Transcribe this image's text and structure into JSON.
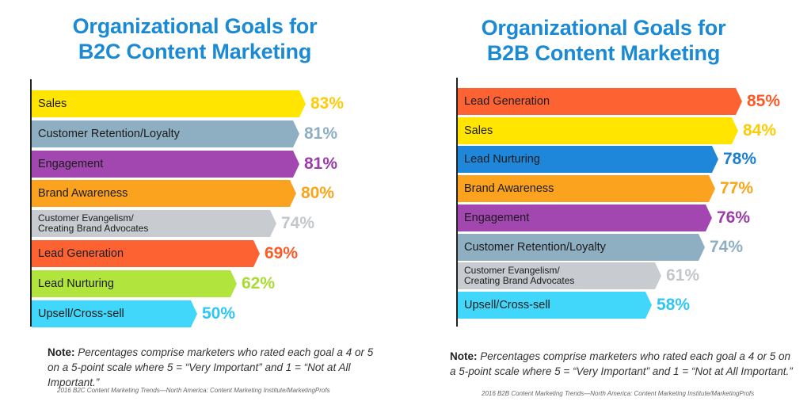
{
  "chart_data": [
    {
      "type": "bar",
      "title": "Organizational Goals for B2C Content Marketing",
      "title_lines": [
        "Organizational Goals for",
        "B2C Content Marketing"
      ],
      "categories": [
        "Sales",
        "Customer Retention/Loyalty",
        "Engagement",
        "Brand Awareness",
        "Customer Evangelism/\nCreating Brand Advocates",
        "Lead Generation",
        "Lead Nurturing",
        "Upsell/Cross-sell"
      ],
      "values": [
        83,
        81,
        81,
        80,
        74,
        69,
        62,
        50
      ],
      "value_labels": [
        "83%",
        "81%",
        "81%",
        "80%",
        "74%",
        "69%",
        "62%",
        "50%"
      ],
      "colors": [
        "#ffe500",
        "#8eafc2",
        "#a247b0",
        "#fba31e",
        "#c8ccd0",
        "#fd6332",
        "#b1e43c",
        "#40d7fb"
      ],
      "label_colors": [
        "#ffcb05",
        "#8eafc2",
        "#9b3ca8",
        "#f9a51a",
        "#c3c6ca",
        "#fb5b26",
        "#a9dc33",
        "#2fc6f5"
      ],
      "note_label": "Note:",
      "note_text": "Percentages comprise marketers who rated each goal a 4 or 5 on a 5-point scale where 5 = “Very Important” and 1 = “Not at All Important.”",
      "source": "2016 B2C Content Marketing Trends—North America: Content Marketing Institute/MarketingProfs"
    },
    {
      "type": "bar",
      "title": "Organizational Goals for B2B Content Marketing",
      "title_lines": [
        "Organizational Goals for",
        "B2B Content Marketing"
      ],
      "categories": [
        "Lead Generation",
        "Sales",
        "Lead Nurturing",
        "Brand Awareness",
        "Engagement",
        "Customer Retention/Loyalty",
        "Customer Evangelism/\nCreating Brand Advocates",
        "Upsell/Cross-sell"
      ],
      "values": [
        85,
        84,
        78,
        77,
        76,
        74,
        61,
        58
      ],
      "value_labels": [
        "85%",
        "84%",
        "78%",
        "77%",
        "76%",
        "74%",
        "61%",
        "58%"
      ],
      "colors": [
        "#fd6332",
        "#ffe500",
        "#1f87d9",
        "#fba31e",
        "#a247b0",
        "#8eafc2",
        "#c8ccd0",
        "#40d7fb"
      ],
      "label_colors": [
        "#fb5b26",
        "#ffcb05",
        "#1b7fd1",
        "#f9a51a",
        "#9b3ca8",
        "#8eafc2",
        "#c3c6ca",
        "#2fc6f5"
      ],
      "note_label": "Note:",
      "note_text": "Percentages comprise marketers who rated each goal a 4 or 5 on a 5-point scale where 5 = “Very Important” and 1 = “Not at All Important.”",
      "source": "2016 B2B Content Marketing Trends—North America: Content Marketing Institute/MarketingProfs"
    }
  ]
}
